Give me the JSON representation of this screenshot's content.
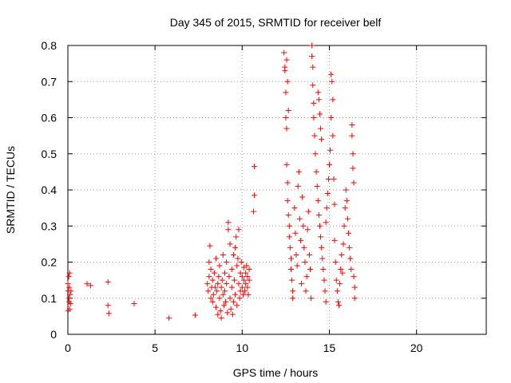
{
  "chart_data": {
    "type": "scatter",
    "title": "Day 345 of 2015, SRMTID for receiver belf",
    "xlabel": "GPS time / hours",
    "ylabel": "SRMTID / TECUs",
    "xlim": [
      0,
      24
    ],
    "ylim": [
      0,
      0.8
    ],
    "xticks": [
      0,
      5,
      10,
      15,
      20
    ],
    "yticks": [
      0,
      0.1,
      0.2,
      0.3,
      0.4,
      0.5,
      0.6,
      0.7,
      0.8
    ],
    "xtick_labels": [
      "0",
      "5",
      "10",
      "15",
      "20"
    ],
    "ytick_labels": [
      "0",
      "0.1",
      "0.2",
      "0.3",
      "0.4",
      "0.5",
      "0.6",
      "0.7",
      "0.8"
    ],
    "grid": true,
    "marker": "+",
    "color": "#ff0000",
    "series": [
      {
        "name": "SRMTID",
        "points": [
          [
            0.0,
            0.14
          ],
          [
            0.02,
            0.12
          ],
          [
            0.05,
            0.1
          ],
          [
            0.05,
            0.16
          ],
          [
            0.07,
            0.09
          ],
          [
            0.08,
            0.13
          ],
          [
            0.1,
            0.07
          ],
          [
            0.1,
            0.17
          ],
          [
            0.12,
            0.11
          ],
          [
            0.15,
            0.085
          ],
          [
            0.02,
            0.065
          ],
          [
            0.18,
            0.12
          ],
          [
            1.1,
            0.14
          ],
          [
            1.3,
            0.135
          ],
          [
            2.3,
            0.145
          ],
          [
            2.3,
            0.08
          ],
          [
            2.35,
            0.058
          ],
          [
            3.8,
            0.085
          ],
          [
            5.8,
            0.045
          ],
          [
            7.3,
            0.053
          ],
          [
            8.0,
            0.14
          ],
          [
            8.05,
            0.12
          ],
          [
            8.1,
            0.2
          ],
          [
            8.1,
            0.16
          ],
          [
            8.15,
            0.245
          ],
          [
            8.2,
            0.1
          ],
          [
            8.2,
            0.18
          ],
          [
            8.25,
            0.13
          ],
          [
            8.3,
            0.15
          ],
          [
            8.3,
            0.09
          ],
          [
            8.35,
            0.11
          ],
          [
            8.4,
            0.17
          ],
          [
            8.45,
            0.13
          ],
          [
            8.5,
            0.21
          ],
          [
            8.5,
            0.075
          ],
          [
            8.55,
            0.12
          ],
          [
            8.6,
            0.14
          ],
          [
            8.6,
            0.055
          ],
          [
            8.65,
            0.16
          ],
          [
            8.7,
            0.1
          ],
          [
            8.7,
            0.19
          ],
          [
            8.75,
            0.065
          ],
          [
            8.8,
            0.13
          ],
          [
            8.8,
            0.045
          ],
          [
            8.85,
            0.15
          ],
          [
            8.9,
            0.11
          ],
          [
            8.9,
            0.22
          ],
          [
            8.95,
            0.08
          ],
          [
            9.0,
            0.17
          ],
          [
            9.0,
            0.12
          ],
          [
            9.05,
            0.09
          ],
          [
            9.1,
            0.2
          ],
          [
            9.1,
            0.14
          ],
          [
            9.15,
            0.06
          ],
          [
            9.2,
            0.31
          ],
          [
            9.2,
            0.29
          ],
          [
            9.25,
            0.16
          ],
          [
            9.3,
            0.1
          ],
          [
            9.3,
            0.25
          ],
          [
            9.35,
            0.07
          ],
          [
            9.4,
            0.18
          ],
          [
            9.4,
            0.13
          ],
          [
            9.45,
            0.055
          ],
          [
            9.5,
            0.22
          ],
          [
            9.5,
            0.09
          ],
          [
            9.55,
            0.15
          ],
          [
            9.6,
            0.24
          ],
          [
            9.6,
            0.11
          ],
          [
            9.65,
            0.27
          ],
          [
            9.7,
            0.19
          ],
          [
            9.7,
            0.08
          ],
          [
            9.75,
            0.21
          ],
          [
            9.8,
            0.29
          ],
          [
            9.8,
            0.14
          ],
          [
            9.85,
            0.1
          ],
          [
            9.9,
            0.17
          ],
          [
            9.9,
            0.12
          ],
          [
            9.95,
            0.2
          ],
          [
            10.0,
            0.13
          ],
          [
            10.0,
            0.16
          ],
          [
            10.05,
            0.11
          ],
          [
            10.1,
            0.15
          ],
          [
            10.1,
            0.185
          ],
          [
            10.15,
            0.12
          ],
          [
            10.2,
            0.14
          ],
          [
            10.2,
            0.17
          ],
          [
            10.25,
            0.19
          ],
          [
            10.3,
            0.13
          ],
          [
            10.3,
            0.16
          ],
          [
            10.35,
            0.11
          ],
          [
            10.4,
            0.15
          ],
          [
            10.4,
            0.18
          ],
          [
            10.7,
            0.465
          ],
          [
            10.7,
            0.385
          ],
          [
            10.65,
            0.34
          ],
          [
            12.4,
            0.78
          ],
          [
            12.45,
            0.74
          ],
          [
            12.5,
            0.67
          ],
          [
            12.5,
            0.6
          ],
          [
            12.55,
            0.57
          ],
          [
            12.55,
            0.47
          ],
          [
            12.6,
            0.42
          ],
          [
            12.6,
            0.37
          ],
          [
            12.65,
            0.33
          ],
          [
            12.7,
            0.3
          ],
          [
            12.7,
            0.27
          ],
          [
            12.75,
            0.24
          ],
          [
            12.8,
            0.21
          ],
          [
            12.8,
            0.18
          ],
          [
            12.85,
            0.15
          ],
          [
            12.9,
            0.12
          ],
          [
            12.9,
            0.1
          ],
          [
            12.45,
            0.73
          ],
          [
            12.55,
            0.76
          ],
          [
            12.6,
            0.7
          ],
          [
            12.65,
            0.62
          ],
          [
            13.0,
            0.35
          ],
          [
            13.05,
            0.28
          ],
          [
            13.1,
            0.22
          ],
          [
            13.15,
            0.19
          ],
          [
            13.2,
            0.41
          ],
          [
            13.25,
            0.45
          ],
          [
            13.3,
            0.32
          ],
          [
            13.35,
            0.26
          ],
          [
            13.4,
            0.14
          ],
          [
            13.45,
            0.38
          ],
          [
            13.5,
            0.3
          ],
          [
            13.55,
            0.24
          ],
          [
            13.6,
            0.2
          ],
          [
            13.65,
            0.12
          ],
          [
            13.7,
            0.16
          ],
          [
            13.75,
            0.29
          ],
          [
            13.8,
            0.34
          ],
          [
            13.85,
            0.22
          ],
          [
            13.9,
            0.18
          ],
          [
            13.95,
            0.1
          ],
          [
            14.0,
            0.8
          ],
          [
            14.0,
            0.77
          ],
          [
            14.05,
            0.74
          ],
          [
            14.05,
            0.69
          ],
          [
            14.1,
            0.64
          ],
          [
            14.1,
            0.6
          ],
          [
            14.15,
            0.55
          ],
          [
            14.2,
            0.5
          ],
          [
            14.25,
            0.45
          ],
          [
            14.3,
            0.41
          ],
          [
            14.35,
            0.37
          ],
          [
            14.4,
            0.33
          ],
          [
            14.45,
            0.3
          ],
          [
            14.5,
            0.27
          ],
          [
            14.55,
            0.24
          ],
          [
            14.6,
            0.21
          ],
          [
            14.65,
            0.18
          ],
          [
            14.7,
            0.15
          ],
          [
            14.75,
            0.12
          ],
          [
            14.8,
            0.09
          ],
          [
            14.35,
            0.67
          ],
          [
            14.4,
            0.65
          ],
          [
            14.45,
            0.61
          ],
          [
            14.5,
            0.57
          ],
          [
            14.55,
            0.54
          ],
          [
            14.8,
            0.31
          ],
          [
            14.85,
            0.35
          ],
          [
            14.9,
            0.39
          ],
          [
            14.95,
            0.43
          ],
          [
            15.0,
            0.47
          ],
          [
            15.05,
            0.51
          ],
          [
            15.1,
            0.6
          ],
          [
            15.1,
            0.72
          ],
          [
            15.15,
            0.7
          ],
          [
            15.2,
            0.65
          ],
          [
            15.2,
            0.55
          ],
          [
            15.25,
            0.43
          ],
          [
            15.3,
            0.36
          ],
          [
            15.3,
            0.26
          ],
          [
            15.35,
            0.2
          ],
          [
            15.4,
            0.15
          ],
          [
            15.45,
            0.12
          ],
          [
            15.5,
            0.09
          ],
          [
            15.55,
            0.08
          ],
          [
            15.6,
            0.14
          ],
          [
            15.65,
            0.18
          ],
          [
            15.7,
            0.22
          ],
          [
            15.75,
            0.17
          ],
          [
            15.8,
            0.25
          ],
          [
            15.85,
            0.3
          ],
          [
            15.9,
            0.35
          ],
          [
            15.95,
            0.4
          ],
          [
            16.0,
            0.37
          ],
          [
            16.05,
            0.32
          ],
          [
            16.1,
            0.28
          ],
          [
            16.15,
            0.24
          ],
          [
            16.2,
            0.21
          ],
          [
            16.25,
            0.18
          ],
          [
            16.3,
            0.55
          ],
          [
            16.3,
            0.58
          ],
          [
            16.35,
            0.5
          ],
          [
            16.35,
            0.46
          ],
          [
            16.4,
            0.42
          ],
          [
            16.4,
            0.16
          ],
          [
            16.45,
            0.13
          ],
          [
            16.45,
            0.1
          ]
        ]
      }
    ]
  }
}
